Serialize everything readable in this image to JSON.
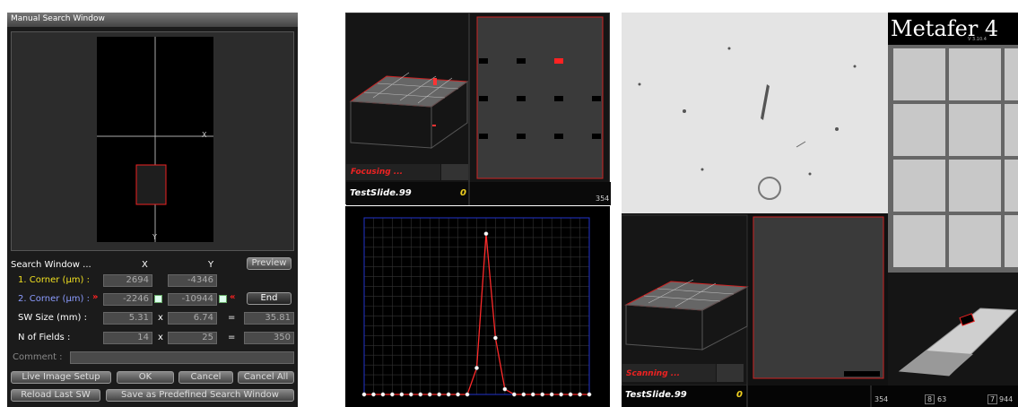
{
  "search_window": {
    "title": "Manual Search Window",
    "overview": {
      "x_label": "X",
      "y_label": "Y"
    },
    "heading": "Search Window ...",
    "col_x": "X",
    "col_y": "Y",
    "preview": "Preview",
    "rows": [
      {
        "label": "1. Corner (µm) :",
        "x": "2694",
        "y": "-4346"
      },
      {
        "label": "2. Corner (µm) :",
        "marker_left": "»",
        "x": "-2246",
        "y": "-10944",
        "marker_right": "«",
        "button": "End"
      },
      {
        "label": "SW Size (mm) :",
        "x": "5.31",
        "op": "x",
        "y": "6.74",
        "eq": "=",
        "result": "35.81"
      },
      {
        "label": "N of Fields :",
        "x": "14",
        "op": "x",
        "y": "25",
        "eq": "=",
        "result": "350"
      }
    ],
    "comment": "Comment :",
    "buttons": [
      "Live Image Setup",
      "OK",
      "Cancel",
      "Cancel All",
      "Reload Last SW",
      "Save as Predefined Search Window"
    ]
  },
  "focus_panel": {
    "status": "Focusing ...",
    "slide": "TestSlide.99",
    "count": "0",
    "fields": "354"
  },
  "chart_data": {
    "type": "line",
    "color": "#ff2a2a",
    "categories": [
      null,
      null,
      null,
      null,
      null,
      null,
      null,
      null,
      null,
      null,
      null,
      null,
      null,
      null,
      null,
      null,
      null,
      null,
      null,
      null,
      null,
      null,
      null,
      null,
      null
    ],
    "values": [
      0,
      0,
      0,
      0,
      0,
      0,
      0,
      0,
      0,
      0,
      0,
      0,
      15,
      91,
      32,
      3,
      0,
      0,
      0,
      0,
      0,
      0,
      0,
      0,
      0
    ],
    "ylim": [
      0,
      100
    ],
    "grid": true
  },
  "scan_panel": {
    "brand": "Metafer 4",
    "version": "V 3.10.4",
    "status": "Scanning ...",
    "slide": "TestSlide.99",
    "count": "0",
    "stats": [
      "354",
      "8",
      "63",
      "7",
      "944"
    ]
  }
}
